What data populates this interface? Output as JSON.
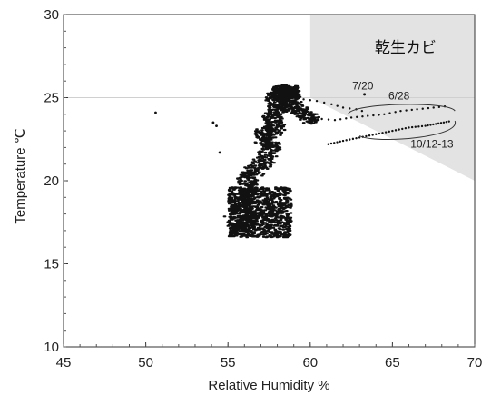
{
  "chart_data": {
    "type": "scatter",
    "title": "",
    "xlabel": "Relative Humidity %",
    "ylabel": "Temperature ℃",
    "xlim": [
      45,
      70
    ],
    "ylim": [
      10,
      30
    ],
    "x_ticks": [
      "45",
      "50",
      "55",
      "60",
      "65",
      "70"
    ],
    "y_ticks": [
      "10",
      "15",
      "20",
      "25",
      "30"
    ],
    "grid": false,
    "reference_line": {
      "y": 25
    },
    "region": {
      "label": "乾生カビ",
      "polygon": [
        [
          60,
          30
        ],
        [
          70,
          30
        ],
        [
          70,
          20
        ],
        [
          60,
          25
        ]
      ],
      "color": "#e3e3e3"
    },
    "annotations": [
      {
        "text": "7/20",
        "x": 63.2,
        "y": 25.5
      },
      {
        "text": "6/28",
        "x": 65.4,
        "y": 24.9
      },
      {
        "text": "10/12-13",
        "x": 67.4,
        "y": 22.0
      }
    ],
    "outlier_points": [
      {
        "x": 50.6,
        "y": 24.1
      },
      {
        "x": 54.1,
        "y": 23.5
      },
      {
        "x": 54.3,
        "y": 23.3
      },
      {
        "x": 54.5,
        "y": 21.7
      }
    ],
    "path_points": [
      {
        "x": 55.3,
        "y": 17.6
      },
      {
        "x": 55.8,
        "y": 17.0
      },
      {
        "x": 56.3,
        "y": 17.8
      },
      {
        "x": 55.6,
        "y": 18.6
      },
      {
        "x": 56.3,
        "y": 19.4
      },
      {
        "x": 56.0,
        "y": 20.1
      },
      {
        "x": 56.7,
        "y": 20.7
      },
      {
        "x": 57.3,
        "y": 21.4
      },
      {
        "x": 57.6,
        "y": 22.1
      },
      {
        "x": 57.0,
        "y": 22.7
      },
      {
        "x": 57.9,
        "y": 23.1
      },
      {
        "x": 57.6,
        "y": 23.8
      },
      {
        "x": 58.0,
        "y": 24.4
      },
      {
        "x": 57.8,
        "y": 25.1
      },
      {
        "x": 58.3,
        "y": 25.5
      },
      {
        "x": 58.8,
        "y": 25.2
      },
      {
        "x": 59.0,
        "y": 24.4
      },
      {
        "x": 59.5,
        "y": 23.9
      },
      {
        "x": 60.3,
        "y": 23.7
      }
    ],
    "trail_6_28": [
      {
        "x": 60.3,
        "y": 23.75
      },
      {
        "x": 61.5,
        "y": 23.65
      },
      {
        "x": 62.5,
        "y": 23.8
      },
      {
        "x": 63.5,
        "y": 23.9
      },
      {
        "x": 64.5,
        "y": 24.0
      },
      {
        "x": 65.5,
        "y": 24.2
      },
      {
        "x": 66.5,
        "y": 24.3
      },
      {
        "x": 67.5,
        "y": 24.4
      },
      {
        "x": 68.5,
        "y": 24.5
      }
    ],
    "trail_7_20": [
      {
        "x": 59.6,
        "y": 24.9
      },
      {
        "x": 60.4,
        "y": 24.8
      },
      {
        "x": 61.3,
        "y": 24.6
      },
      {
        "x": 62.0,
        "y": 24.4
      },
      {
        "x": 62.8,
        "y": 24.3
      },
      {
        "x": 63.5,
        "y": 24.1
      }
    ],
    "trail_10_12": [
      {
        "x": 61.1,
        "y": 22.2
      },
      {
        "x": 62.0,
        "y": 22.4
      },
      {
        "x": 63.0,
        "y": 22.6
      },
      {
        "x": 64.0,
        "y": 22.8
      },
      {
        "x": 65.0,
        "y": 23.0
      },
      {
        "x": 66.0,
        "y": 23.2
      },
      {
        "x": 67.0,
        "y": 23.3
      },
      {
        "x": 67.8,
        "y": 23.45
      },
      {
        "x": 68.6,
        "y": 23.6
      }
    ]
  }
}
